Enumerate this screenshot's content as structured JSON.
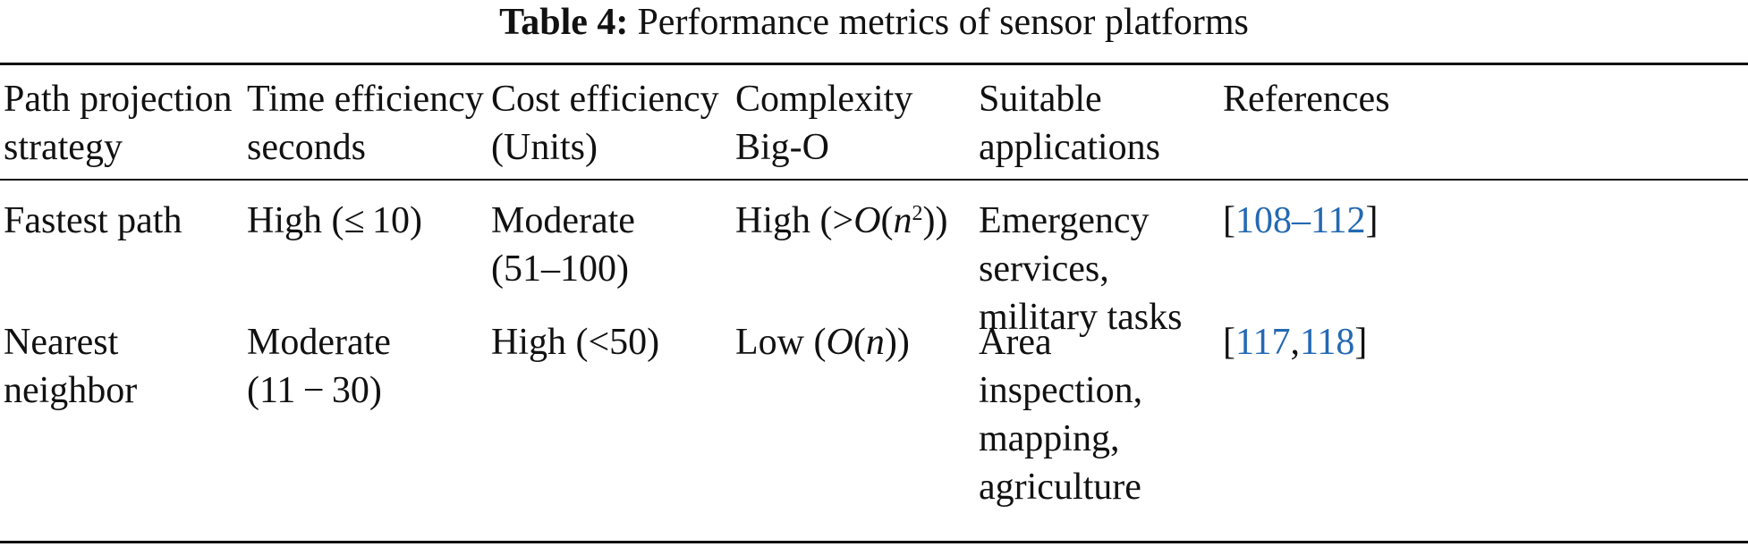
{
  "caption": {
    "label": "Table 4:",
    "title": "Performance metrics of sensor platforms"
  },
  "table": {
    "headers": [
      [
        "Path projection",
        "strategy"
      ],
      [
        "Time efficiency",
        "seconds"
      ],
      [
        "Cost efficiency",
        "(Units)"
      ],
      [
        "Complexity",
        "Big-O"
      ],
      [
        "Suitable",
        "applications"
      ],
      [
        "References"
      ]
    ],
    "rows": [
      {
        "strategy": [
          "Fastest path"
        ],
        "time": [
          "High (≤ 10)"
        ],
        "cost": [
          "Moderate",
          "(51–100)"
        ],
        "complexity": {
          "prefix": "High (>",
          "O": "O",
          "open": "(",
          "n": "n",
          "exp": "2",
          "close": "))"
        },
        "applications": [
          "Emergency",
          "services,",
          "military tasks"
        ],
        "references": {
          "open": "[",
          "link1": "108–112",
          "sep": "",
          "link2": "",
          "close": "]"
        }
      },
      {
        "strategy": [
          "Nearest",
          "neighbor"
        ],
        "time": [
          "Moderate",
          "(11 − 30)"
        ],
        "cost": [
          "High (<50)"
        ],
        "complexity": {
          "prefix": "Low (",
          "O": "O",
          "open": "(",
          "n": "n",
          "exp": "",
          "close": "))"
        },
        "applications": [
          "Area",
          "inspection,",
          "mapping,",
          "agriculture"
        ],
        "references": {
          "open": "[",
          "link1": "117",
          "sep": ",",
          "link2": "118",
          "close": "]"
        }
      }
    ]
  }
}
